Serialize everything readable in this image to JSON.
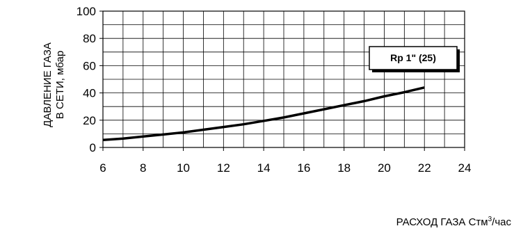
{
  "chart_data": {
    "type": "line",
    "title": "",
    "ylabel_lines": [
      "ДАВЛЕНИЕ ГАЗА",
      "В СЕТИ, мбар"
    ],
    "xlabel_main": "РАСХОД ГАЗА Стм",
    "xlabel_sup": "3",
    "xlabel_tail": "/час",
    "xlim": [
      6,
      24
    ],
    "ylim": [
      0,
      100
    ],
    "x_ticks": [
      "6",
      "8",
      "10",
      "12",
      "14",
      "16",
      "18",
      "20",
      "22",
      "24"
    ],
    "y_ticks": [
      "0",
      "20",
      "40",
      "60",
      "80",
      "100"
    ],
    "grid": true,
    "legend_position": "top-right",
    "series": [
      {
        "name": "Rp 1\" (25)",
        "color": "#000000",
        "x": [
          6,
          7,
          8,
          9,
          10,
          11,
          12,
          13,
          14,
          15,
          16,
          17,
          18,
          19,
          20,
          21,
          22
        ],
        "y": [
          5.5,
          6.5,
          8,
          9.5,
          11,
          13,
          15,
          17,
          19.5,
          22,
          25,
          28,
          31,
          34,
          37.5,
          40.5,
          44
        ]
      }
    ]
  }
}
